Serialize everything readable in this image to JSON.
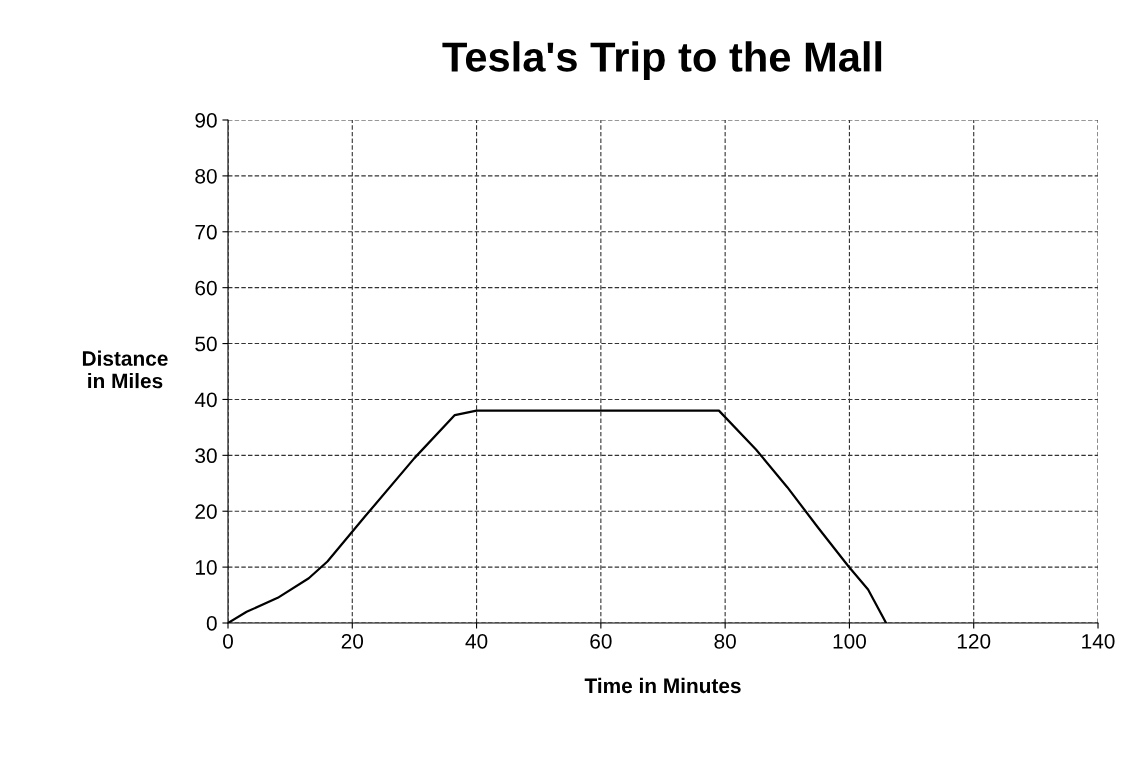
{
  "chart_data": {
    "type": "line",
    "title": "Tesla's Trip to the Mall",
    "xlabel": "Time in Minutes",
    "ylabel": "Distance\nin Miles",
    "series": [
      {
        "color": "#000000",
        "x": [
          0,
          3,
          8,
          13,
          16,
          22,
          30,
          36.5,
          40,
          50,
          60,
          70,
          77.2,
          79,
          85,
          90,
          95,
          99.8,
          103,
          105.9
        ],
        "values": [
          0,
          2,
          4.5,
          8,
          11,
          19,
          29.5,
          37.2,
          38,
          38,
          38,
          38,
          38,
          38,
          31,
          24.3,
          17,
          10.2,
          6,
          0
        ]
      }
    ],
    "xlim": [
      0,
      140
    ],
    "xticks": [
      0,
      20,
      40,
      60,
      80,
      100,
      120,
      140
    ],
    "ylim": [
      0,
      90
    ],
    "yticks": [
      0,
      10,
      20,
      30,
      40,
      50,
      60,
      70,
      80,
      90
    ],
    "grid": true,
    "marker": "none",
    "line_style": "solid"
  }
}
